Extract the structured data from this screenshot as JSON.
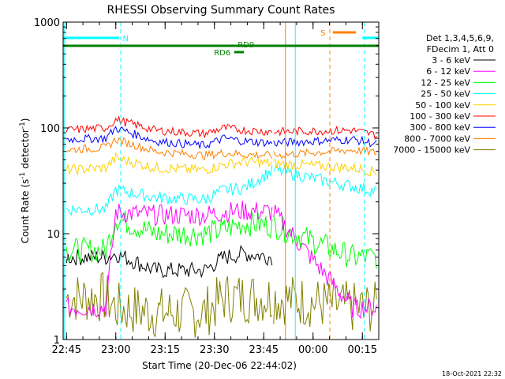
{
  "chart_data": {
    "type": "line",
    "title": "RHESSI Observing Summary Count Rates",
    "xlabel": "Start Time (20-Dec-06 22:44:02)",
    "ylabel": "Count Rate (s",
    "ylabel_sup": "-1",
    "ylabel_tail": " detector",
    "ylabel_sup2": "-1",
    "ylabel_end": ")",
    "ylog": true,
    "ylim": [
      1,
      1000
    ],
    "xlim_min": [
      22.733,
      24.333
    ],
    "y_ticks": [
      {
        "v": 1,
        "label": "1"
      },
      {
        "v": 10,
        "label": "10"
      },
      {
        "v": 100,
        "label": "100"
      },
      {
        "v": 1000,
        "label": "1000"
      }
    ],
    "x_ticks": [
      {
        "h": 22.75,
        "label": "22:45"
      },
      {
        "h": 23.0,
        "label": "23:00"
      },
      {
        "h": 23.25,
        "label": "23:15"
      },
      {
        "h": 23.5,
        "label": "23:30"
      },
      {
        "h": 23.75,
        "label": "23:45"
      },
      {
        "h": 24.0,
        "label": "00:00"
      },
      {
        "h": 24.25,
        "label": "00:15"
      }
    ],
    "footer": "18-Oct-2021 22:32",
    "legend_title1": "Det 1,3,4,5,6,9,",
    "legend_title2": "FDecim 1, Att 0",
    "legend_position": "right",
    "series": [
      {
        "name": "3 - 6 keV",
        "color": "#000000",
        "points": [
          [
            22.75,
            6
          ],
          [
            22.95,
            6
          ],
          [
            23.0,
            6.5
          ],
          [
            23.2,
            4.5
          ],
          [
            23.45,
            4.5
          ],
          [
            23.55,
            6
          ],
          [
            23.65,
            6.5
          ],
          [
            23.8,
            6
          ]
        ]
      },
      {
        "name": "6 - 12 keV",
        "color": "#ff00ff",
        "points": [
          [
            22.75,
            2
          ],
          [
            22.95,
            2
          ],
          [
            23.0,
            16
          ],
          [
            23.2,
            15
          ],
          [
            23.45,
            15
          ],
          [
            23.55,
            16
          ],
          [
            23.65,
            16.5
          ],
          [
            23.8,
            16
          ],
          [
            24.2,
            2
          ],
          [
            24.33,
            2
          ]
        ]
      },
      {
        "name": "12 - 25 keV",
        "color": "#00ff00",
        "points": [
          [
            22.75,
            7
          ],
          [
            22.95,
            7
          ],
          [
            23.0,
            14
          ],
          [
            23.2,
            10
          ],
          [
            23.45,
            10
          ],
          [
            23.55,
            11
          ],
          [
            23.65,
            12.5
          ],
          [
            23.8,
            12
          ],
          [
            24.2,
            6
          ],
          [
            24.33,
            6
          ]
        ]
      },
      {
        "name": "25 - 50 keV",
        "color": "#00ffff",
        "points": [
          [
            22.75,
            17
          ],
          [
            22.95,
            17
          ],
          [
            23.0,
            26
          ],
          [
            23.2,
            22
          ],
          [
            23.45,
            21
          ],
          [
            23.55,
            26
          ],
          [
            23.65,
            27
          ],
          [
            23.8,
            40
          ],
          [
            24.2,
            28
          ],
          [
            24.33,
            25
          ]
        ]
      },
      {
        "name": "50 - 100 keV",
        "color": "#ffd000",
        "points": [
          [
            22.75,
            40
          ],
          [
            22.95,
            42
          ],
          [
            23.0,
            52
          ],
          [
            23.2,
            42
          ],
          [
            23.45,
            40
          ],
          [
            23.55,
            45
          ],
          [
            23.65,
            48
          ],
          [
            23.8,
            46
          ],
          [
            24.2,
            42
          ],
          [
            24.33,
            38
          ]
        ]
      },
      {
        "name": "100 - 300 keV",
        "color": "#ff0000",
        "points": [
          [
            22.75,
            95
          ],
          [
            22.95,
            100
          ],
          [
            23.0,
            120
          ],
          [
            23.2,
            95
          ],
          [
            23.45,
            88
          ],
          [
            23.55,
            100
          ],
          [
            23.65,
            95
          ],
          [
            23.8,
            92
          ],
          [
            24.2,
            95
          ],
          [
            24.33,
            85
          ]
        ]
      },
      {
        "name": "300 - 800 keV",
        "color": "#0000ff",
        "points": [
          [
            22.75,
            78
          ],
          [
            22.95,
            80
          ],
          [
            23.0,
            100
          ],
          [
            23.2,
            75
          ],
          [
            23.45,
            68
          ],
          [
            23.55,
            80
          ],
          [
            23.65,
            75
          ],
          [
            23.8,
            72
          ],
          [
            24.2,
            78
          ],
          [
            24.33,
            70
          ]
        ]
      },
      {
        "name": "800 - 7000 keV",
        "color": "#ff8000",
        "points": [
          [
            22.75,
            62
          ],
          [
            22.95,
            65
          ],
          [
            23.0,
            78
          ],
          [
            23.2,
            60
          ],
          [
            23.45,
            55
          ],
          [
            23.55,
            58
          ],
          [
            23.65,
            56
          ],
          [
            23.8,
            55
          ],
          [
            24.2,
            62
          ],
          [
            24.33,
            58
          ]
        ]
      },
      {
        "name": "7000 - 15000 keV",
        "color": "#808000",
        "points": [
          [
            22.75,
            2.5
          ],
          [
            22.95,
            2.5
          ],
          [
            23.0,
            2
          ],
          [
            23.2,
            1.8
          ],
          [
            23.45,
            1.8
          ],
          [
            23.55,
            2.5
          ],
          [
            23.65,
            2.5
          ],
          [
            23.8,
            2.5
          ],
          [
            24.2,
            2
          ],
          [
            24.33,
            2
          ]
        ]
      }
    ],
    "flags": [
      {
        "label": "N",
        "color": "#00ffff",
        "segments": [
          [
            22.733,
            23.017
          ],
          [
            24.25,
            24.333
          ]
        ]
      },
      {
        "label": "RD6",
        "color": "#008000",
        "segments": [
          [
            23.6,
            23.65
          ]
        ]
      },
      {
        "label": "RD9",
        "color": "#008000",
        "segments": [
          [
            22.733,
            24.333
          ]
        ]
      },
      {
        "label": "S",
        "color": "#ff8000",
        "segments": [
          [
            24.1,
            24.217
          ]
        ]
      }
    ]
  }
}
